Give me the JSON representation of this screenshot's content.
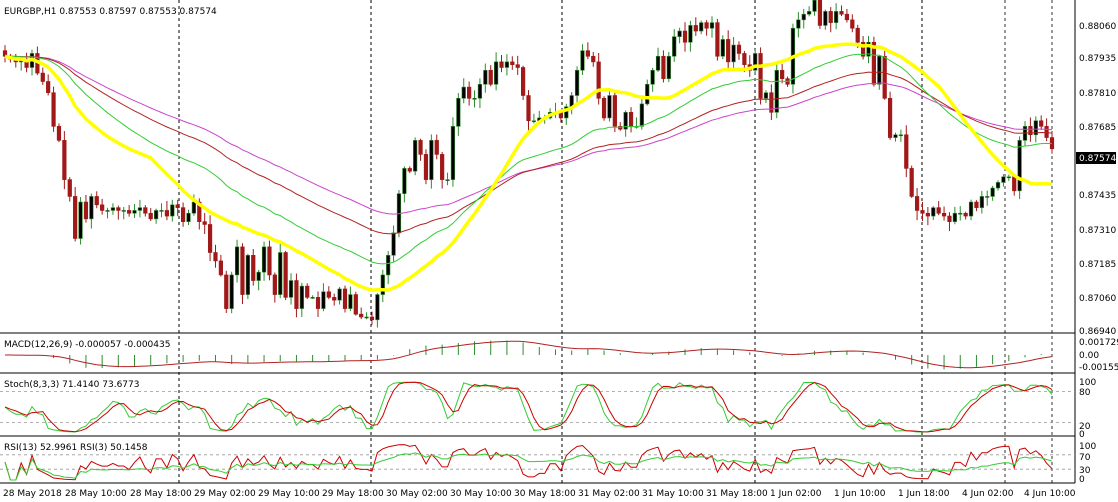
{
  "header": {
    "symbol_label": "EURGBP,H1 0.87553 0.87597 0.87553 0.87574"
  },
  "colors": {
    "bull": "#2e8b2e",
    "bear": "#a01818",
    "ma_yellow": "#ffff00",
    "ma_green": "#32cd32",
    "ma_red": "#b22222",
    "ma_magenta": "#cc44cc",
    "grid": "#c0c0c0",
    "sep": "#000000",
    "price_tag_bg": "#000000"
  },
  "price_axis": {
    "labels": [
      "0.88060",
      "0.87935",
      "0.87810",
      "0.87685",
      "0.87435",
      "0.87310",
      "0.87185",
      "0.87060",
      "0.86940"
    ],
    "current_price": "0.87574"
  },
  "time_axis": {
    "labels": [
      "28 May 2018",
      "28 May 10:00",
      "28 May 18:00",
      "29 May 02:00",
      "29 May 10:00",
      "29 May 18:00",
      "30 May 02:00",
      "30 May 10:00",
      "30 May 18:00",
      "31 May 02:00",
      "31 May 10:00",
      "31 May 18:00",
      "1 Jun 02:00",
      "1 Jun 10:00",
      "1 Jun 18:00",
      "4 Jun 02:00",
      "4 Jun 10:00"
    ]
  },
  "macd": {
    "label": "MACD(12,26,9) -0.000057 -0.000435",
    "axis": [
      "0.001729",
      "0.00",
      "-0.001552"
    ]
  },
  "stoch": {
    "label": "Stoch(8,3,3) 71.4140 73.6773",
    "axis": [
      "100",
      "80",
      "20",
      "0"
    ]
  },
  "rsi": {
    "label": "RSI(13) 52.9961 RSI(3) 50.1458",
    "axis": [
      "100",
      "70",
      "30",
      "0"
    ]
  },
  "chart_data": {
    "type": "candlestick",
    "symbol": "EURGBP",
    "timeframe": "H1",
    "price_range": [
      0.8692,
      0.8809
    ],
    "closes": [
      0.879,
      0.8789,
      0.8788,
      0.8789,
      0.8786,
      0.8791,
      0.8784,
      0.8781,
      0.8777,
      0.8765,
      0.876,
      0.8746,
      0.874,
      0.8725,
      0.8738,
      0.8732,
      0.874,
      0.8737,
      0.8735,
      0.8735,
      0.8736,
      0.8735,
      0.8735,
      0.8734,
      0.8735,
      0.8736,
      0.8734,
      0.8732,
      0.8735,
      0.8735,
      0.8733,
      0.8737,
      0.8736,
      0.8731,
      0.8734,
      0.8738,
      0.8731,
      0.873,
      0.872,
      0.8717,
      0.8712,
      0.87,
      0.8712,
      0.8722,
      0.8705,
      0.8719,
      0.871,
      0.8713,
      0.8722,
      0.8712,
      0.8705,
      0.872,
      0.8704,
      0.871,
      0.87,
      0.8708,
      0.8704,
      0.8704,
      0.87,
      0.8706,
      0.8704,
      0.8703,
      0.8707,
      0.87,
      0.8705,
      0.8698,
      0.8697,
      0.8697,
      0.8696,
      0.8705,
      0.8712,
      0.8719,
      0.8727,
      0.8741,
      0.875,
      0.8749,
      0.876,
      0.8755,
      0.8746,
      0.876,
      0.8755,
      0.8746,
      0.8746,
      0.8765,
      0.8775,
      0.8779,
      0.8775,
      0.8775,
      0.878,
      0.8785,
      0.878,
      0.8788,
      0.8786,
      0.8788,
      0.8787,
      0.8786,
      0.8776,
      0.8767,
      0.8767,
      0.8768,
      0.8768,
      0.877,
      0.877,
      0.8768,
      0.8772,
      0.8776,
      0.8785,
      0.8792,
      0.879,
      0.8788,
      0.8775,
      0.8768,
      0.8776,
      0.8765,
      0.8764,
      0.877,
      0.8765,
      0.8765,
      0.8773,
      0.878,
      0.8785,
      0.879,
      0.8782,
      0.879,
      0.8797,
      0.8799,
      0.8795,
      0.8801,
      0.8799,
      0.8802,
      0.88,
      0.8802,
      0.879,
      0.8796,
      0.8788,
      0.8794,
      0.8791,
      0.8787,
      0.8785,
      0.8791,
      0.8775,
      0.8777,
      0.877,
      0.8785,
      0.8782,
      0.878,
      0.88,
      0.8803,
      0.8805,
      0.8806,
      0.881,
      0.8801,
      0.8806,
      0.8802,
      0.8806,
      0.8805,
      0.8803,
      0.88,
      0.8795,
      0.879,
      0.8795,
      0.878,
      0.879,
      0.8775,
      0.8761,
      0.8762,
      0.8762,
      0.875,
      0.874,
      0.8735,
      0.8734,
      0.8733,
      0.8736,
      0.8734,
      0.8733,
      0.8731,
      0.8734,
      0.8734,
      0.8733,
      0.8738,
      0.8736,
      0.874,
      0.874,
      0.8743,
      0.8745,
      0.8747,
      0.8747,
      0.8742,
      0.876,
      0.8765,
      0.8762,
      0.8767,
      0.8765,
      0.8761,
      0.8757
    ]
  }
}
